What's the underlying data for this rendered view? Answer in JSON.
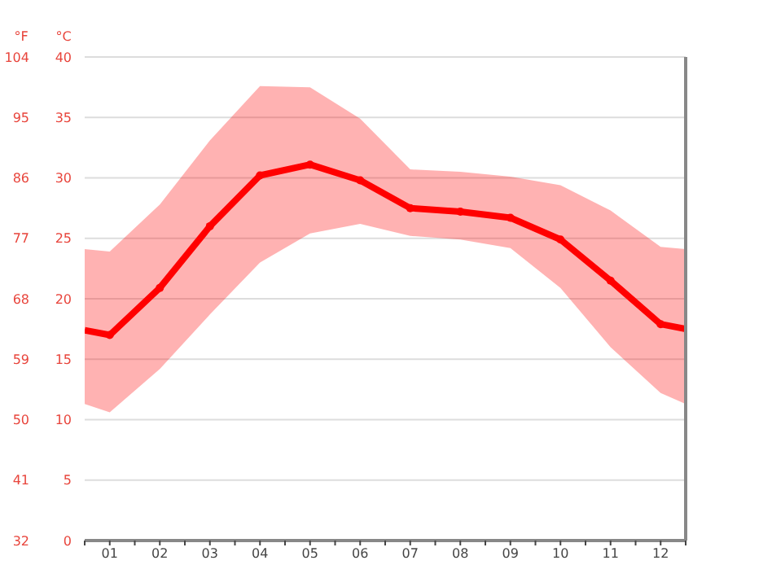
{
  "chart_data": {
    "type": "line",
    "ylabel": "°C",
    "y2label": "°F",
    "xlim": [
      0.5,
      12.5
    ],
    "xticks": [
      {
        "value": 0.5,
        "label": null
      },
      {
        "value": 1,
        "label": "01"
      },
      {
        "value": 1.5,
        "label": null
      },
      {
        "value": 2,
        "label": "02"
      },
      {
        "value": 2.5,
        "label": null
      },
      {
        "value": 3,
        "label": "03"
      },
      {
        "value": 3.5,
        "label": null
      },
      {
        "value": 4,
        "label": "04"
      },
      {
        "value": 4.5,
        "label": null
      },
      {
        "value": 5,
        "label": "05"
      },
      {
        "value": 5.5,
        "label": null
      },
      {
        "value": 6,
        "label": "06"
      },
      {
        "value": 6.5,
        "label": null
      },
      {
        "value": 7,
        "label": "07"
      },
      {
        "value": 7.5,
        "label": null
      },
      {
        "value": 8,
        "label": "08"
      },
      {
        "value": 8.5,
        "label": null
      },
      {
        "value": 9,
        "label": "09"
      },
      {
        "value": 9.5,
        "label": null
      },
      {
        "value": 10,
        "label": "10"
      },
      {
        "value": 10.5,
        "label": null
      },
      {
        "value": 11,
        "label": "11"
      },
      {
        "value": 11.5,
        "label": null
      },
      {
        "value": 12,
        "label": "12"
      },
      {
        "value": 12.5,
        "label": null
      }
    ],
    "ylim": [
      0,
      40
    ],
    "yticks": [
      0,
      5,
      10,
      15,
      20,
      25,
      30,
      35,
      40
    ],
    "y2lim": [
      32,
      104
    ],
    "y2ticks": [
      32,
      41,
      50,
      59,
      68,
      77,
      86,
      95,
      104
    ],
    "grid": "y",
    "marker": "circle",
    "line_style": "solid",
    "series": [
      {
        "color": "#ff0000",
        "x": [
          0.5,
          1,
          2,
          3,
          4,
          5,
          6,
          7,
          8,
          9,
          10,
          11,
          12,
          12.5
        ],
        "values": [
          17.4,
          17.0,
          20.9,
          26.0,
          30.2,
          31.1,
          29.8,
          27.5,
          27.2,
          26.7,
          24.9,
          21.5,
          17.9,
          17.5
        ],
        "lower": [
          11.3,
          10.6,
          14.2,
          18.7,
          23.0,
          25.4,
          26.2,
          25.2,
          24.9,
          24.2,
          20.9,
          16.0,
          12.2,
          11.3
        ],
        "upper": [
          24.1,
          23.9,
          27.8,
          33.1,
          37.6,
          37.5,
          34.9,
          30.7,
          30.5,
          30.1,
          29.4,
          27.3,
          24.3,
          24.1
        ]
      }
    ]
  }
}
